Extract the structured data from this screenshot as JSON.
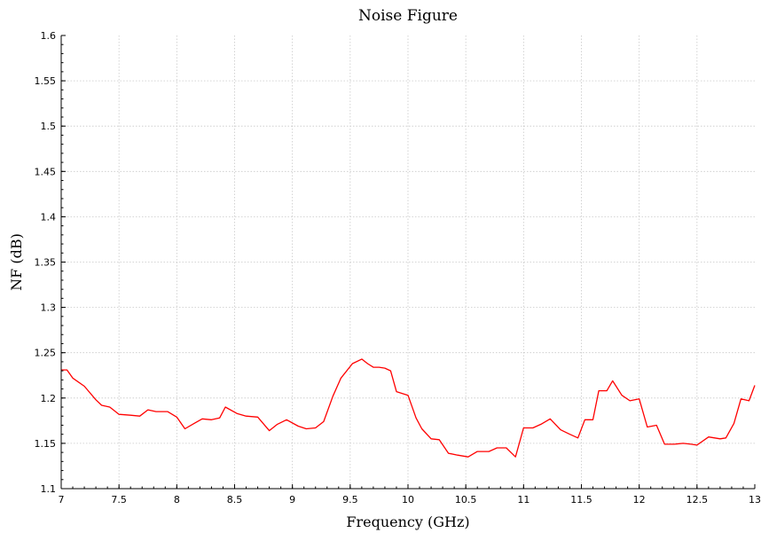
{
  "chart_data": {
    "type": "line",
    "title": "Noise Figure",
    "xlabel": "Frequency (GHz)",
    "ylabel": "NF (dB)",
    "xlim": [
      7,
      13
    ],
    "ylim": [
      1.1,
      1.6
    ],
    "xticks": [
      "7",
      "7.5",
      "8",
      "8.5",
      "9",
      "9.5",
      "10",
      "10.5",
      "11",
      "11.5",
      "12",
      "12.5",
      "13"
    ],
    "yticks": [
      "1.1",
      "1.15",
      "1.2",
      "1.25",
      "1.3",
      "1.35",
      "1.4",
      "1.45",
      "1.5",
      "1.55",
      "1.6"
    ],
    "grid": true,
    "series": [
      {
        "color": "#ff0000",
        "x": [
          7.0,
          7.05,
          7.1,
          7.2,
          7.3,
          7.35,
          7.42,
          7.5,
          7.6,
          7.68,
          7.75,
          7.82,
          7.92,
          8.0,
          8.07,
          8.15,
          8.22,
          8.3,
          8.37,
          8.42,
          8.52,
          8.6,
          8.7,
          8.8,
          8.87,
          8.95,
          9.05,
          9.12,
          9.2,
          9.27,
          9.35,
          9.42,
          9.52,
          9.6,
          9.65,
          9.7,
          9.75,
          9.8,
          9.85,
          9.9,
          10.0,
          10.07,
          10.12,
          10.2,
          10.27,
          10.35,
          10.43,
          10.52,
          10.6,
          10.7,
          10.77,
          10.85,
          10.93,
          11.0,
          11.08,
          11.15,
          11.23,
          11.32,
          11.4,
          11.47,
          11.53,
          11.6,
          11.65,
          11.72,
          11.77,
          11.85,
          11.92,
          12.0,
          12.07,
          12.15,
          12.22,
          12.3,
          12.38,
          12.45,
          12.5,
          12.6,
          12.7,
          12.75,
          12.82,
          12.88,
          12.95,
          13.0
        ],
        "y": [
          1.231,
          1.231,
          1.222,
          1.213,
          1.198,
          1.192,
          1.19,
          1.182,
          1.181,
          1.18,
          1.187,
          1.185,
          1.185,
          1.179,
          1.166,
          1.172,
          1.177,
          1.176,
          1.178,
          1.19,
          1.183,
          1.18,
          1.179,
          1.164,
          1.171,
          1.176,
          1.169,
          1.166,
          1.167,
          1.174,
          1.202,
          1.222,
          1.238,
          1.243,
          1.238,
          1.234,
          1.234,
          1.233,
          1.23,
          1.207,
          1.203,
          1.178,
          1.166,
          1.155,
          1.154,
          1.139,
          1.137,
          1.135,
          1.141,
          1.141,
          1.145,
          1.145,
          1.135,
          1.167,
          1.167,
          1.171,
          1.177,
          1.165,
          1.16,
          1.156,
          1.176,
          1.176,
          1.208,
          1.208,
          1.219,
          1.203,
          1.197,
          1.199,
          1.168,
          1.17,
          1.149,
          1.149,
          1.15,
          1.149,
          1.148,
          1.157,
          1.155,
          1.156,
          1.172,
          1.199,
          1.197,
          1.214
        ]
      }
    ]
  }
}
